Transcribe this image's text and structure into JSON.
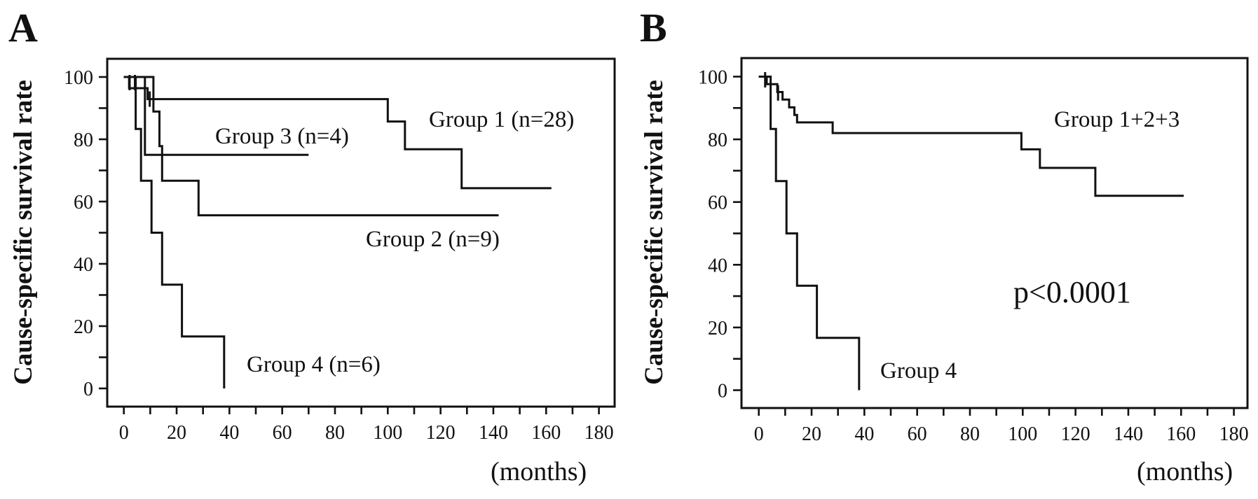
{
  "page": {
    "background": "#ffffff",
    "ink": "#111111"
  },
  "labels": {
    "panel_a": {
      "letter": "A",
      "y_axis_title": "Cause-specific survival rate",
      "x_unit": "(months)",
      "group1": "Group 1 (n=28)",
      "group2": "Group 2 (n=9)",
      "group3": "Group 3 (n=4)",
      "group4": "Group 4 (n=6)"
    },
    "panel_b": {
      "letter": "B",
      "y_axis_title": "Cause-specific survival rate",
      "x_unit": "(months)",
      "combined": "Group 1+2+3",
      "group4": "Group 4",
      "p_value": "p<0.0001"
    }
  },
  "chart_data": [
    {
      "type": "line",
      "subtype": "kaplan-meier-step",
      "panel": "A",
      "title": "",
      "xlabel": "(months)",
      "ylabel": "Cause-specific survival rate",
      "xlim": [
        -6,
        186
      ],
      "ylim": [
        0,
        106
      ],
      "grid": false,
      "legend": "inline-annotations",
      "x_ticks": {
        "min": 0,
        "max": 180,
        "minor_step": 10,
        "label_step": 20
      },
      "y_ticks": {
        "min": 0,
        "max": 100,
        "minor_step": 10,
        "label_step": 20
      },
      "series": [
        {
          "name": "Group 1 (n=28)",
          "points": [
            [
              0,
              100
            ],
            [
              2,
              100
            ],
            [
              2,
              96.4
            ],
            [
              9,
              96.4
            ],
            [
              9,
              92.9
            ],
            [
              100,
              92.9
            ],
            [
              100,
              85.7
            ],
            [
              106.5,
              85.7
            ],
            [
              106.5,
              76.8
            ],
            [
              128,
              76.8
            ],
            [
              128,
              64.3
            ],
            [
              162,
              64.3
            ]
          ],
          "censor_marks": [
            [
              2.2,
              98.2
            ],
            [
              4.2,
              98.2
            ],
            [
              9.8,
              92.9
            ]
          ]
        },
        {
          "name": "Group 2 (n=9)",
          "points": [
            [
              0,
              100
            ],
            [
              11.2,
              100
            ],
            [
              11.2,
              88.9
            ],
            [
              13.5,
              88.9
            ],
            [
              13.5,
              77.8
            ],
            [
              14.5,
              77.8
            ],
            [
              14.5,
              66.7
            ],
            [
              28.3,
              66.7
            ],
            [
              28.3,
              55.6
            ],
            [
              142,
              55.6
            ]
          ],
          "censor_marks": []
        },
        {
          "name": "Group 3 (n=4)",
          "points": [
            [
              0,
              100
            ],
            [
              8,
              100
            ],
            [
              8,
              75
            ],
            [
              70,
              75
            ]
          ],
          "censor_marks": []
        },
        {
          "name": "Group 4 (n=6)",
          "points": [
            [
              0,
              100
            ],
            [
              4.5,
              100
            ],
            [
              4.5,
              83.3
            ],
            [
              6.5,
              83.3
            ],
            [
              6.5,
              66.7
            ],
            [
              10.5,
              66.7
            ],
            [
              10.5,
              50
            ],
            [
              14.5,
              50
            ],
            [
              14.5,
              33.3
            ],
            [
              22,
              33.3
            ],
            [
              22,
              16.7
            ],
            [
              38,
              16.7
            ],
            [
              38,
              0
            ]
          ],
          "censor_marks": []
        }
      ]
    },
    {
      "type": "line",
      "subtype": "kaplan-meier-step",
      "panel": "B",
      "title": "",
      "xlabel": "(months)",
      "ylabel": "Cause-specific survival rate",
      "annotation": "p<0.0001",
      "xlim": [
        -6,
        186
      ],
      "ylim": [
        0,
        106
      ],
      "grid": false,
      "legend": "inline-annotations",
      "x_ticks": {
        "min": 0,
        "max": 180,
        "minor_step": 10,
        "label_step": 20
      },
      "y_ticks": {
        "min": 0,
        "max": 100,
        "minor_step": 10,
        "label_step": 20
      },
      "series": [
        {
          "name": "Group 1+2+3",
          "points": [
            [
              0,
              100
            ],
            [
              3,
              100
            ],
            [
              3,
              97.6
            ],
            [
              7,
              97.6
            ],
            [
              7,
              95.1
            ],
            [
              9,
              95.1
            ],
            [
              9,
              92.7
            ],
            [
              11.5,
              92.7
            ],
            [
              11.5,
              90.2
            ],
            [
              13.5,
              90.2
            ],
            [
              13.5,
              87.8
            ],
            [
              14.5,
              87.8
            ],
            [
              14.5,
              85.4
            ],
            [
              28,
              85.4
            ],
            [
              28,
              82
            ],
            [
              99.5,
              82
            ],
            [
              99.5,
              76.8
            ],
            [
              106.5,
              76.8
            ],
            [
              106.5,
              70.9
            ],
            [
              127.5,
              70.9
            ],
            [
              127.5,
              62
            ],
            [
              161,
              62
            ]
          ],
          "censor_marks": [
            [
              2.4,
              99
            ],
            [
              7.3,
              94.8
            ]
          ]
        },
        {
          "name": "Group 4",
          "points": [
            [
              0,
              100
            ],
            [
              4.5,
              100
            ],
            [
              4.5,
              83.3
            ],
            [
              6.5,
              83.3
            ],
            [
              6.5,
              66.7
            ],
            [
              10.5,
              66.7
            ],
            [
              10.5,
              50
            ],
            [
              14.5,
              50
            ],
            [
              14.5,
              33.3
            ],
            [
              22,
              33.3
            ],
            [
              22,
              16.7
            ],
            [
              38,
              16.7
            ],
            [
              38,
              0
            ]
          ],
          "censor_marks": []
        }
      ]
    }
  ]
}
